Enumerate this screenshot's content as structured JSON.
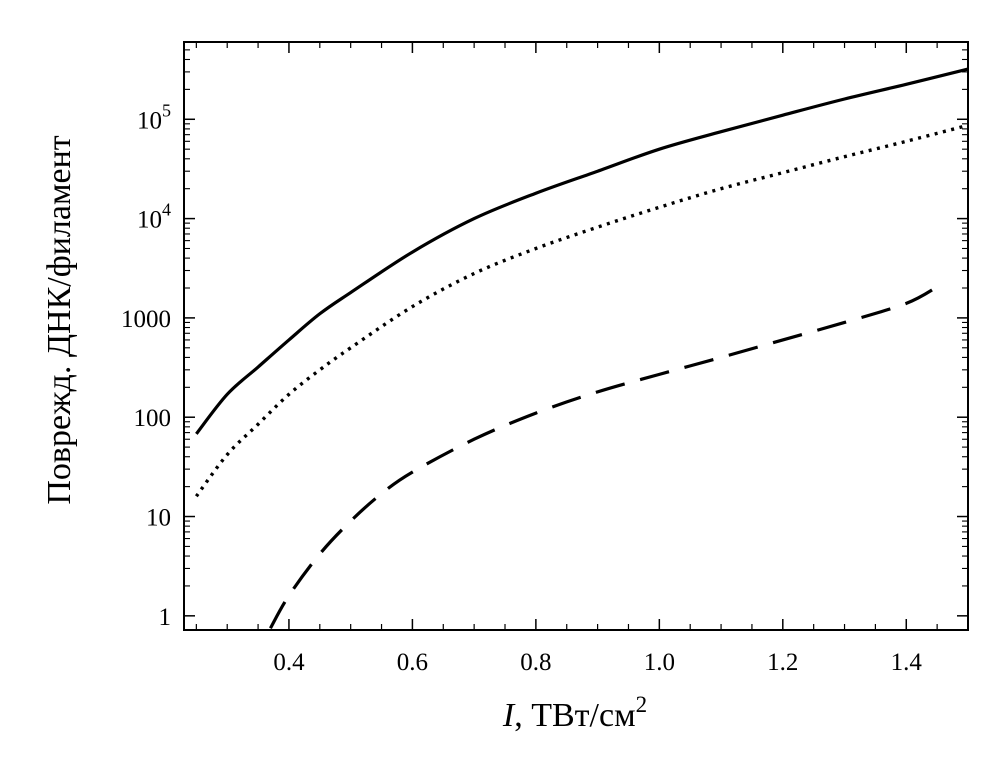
{
  "chart_data": {
    "type": "line",
    "xlabel_italic": "I",
    "xlabel_rest": ", ТВт/см",
    "xlabel_sup": "2",
    "ylabel": "Поврежд. ДНК/филамент",
    "y_scale": "log",
    "xlim": [
      0.23,
      1.5
    ],
    "ylim": [
      0.72,
      600000
    ],
    "x_ticks": [
      {
        "value": 0.4,
        "label": "0.4"
      },
      {
        "value": 0.6,
        "label": "0.6"
      },
      {
        "value": 0.8,
        "label": "0.8"
      },
      {
        "value": 1.0,
        "label": "1.0"
      },
      {
        "value": 1.2,
        "label": "1.2"
      },
      {
        "value": 1.4,
        "label": "1.4"
      }
    ],
    "y_ticks": [
      {
        "value": 1,
        "base": "1",
        "exp": ""
      },
      {
        "value": 10,
        "base": "10",
        "exp": ""
      },
      {
        "value": 100,
        "base": "100",
        "exp": ""
      },
      {
        "value": 1000,
        "base": "1000",
        "exp": ""
      },
      {
        "value": 10000,
        "base": "10",
        "exp": "4"
      },
      {
        "value": 100000,
        "base": "10",
        "exp": "5"
      }
    ],
    "series": [
      {
        "style": "solid",
        "x": [
          0.25,
          0.3,
          0.35,
          0.4,
          0.45,
          0.5,
          0.6,
          0.7,
          0.8,
          0.9,
          1.0,
          1.1,
          1.2,
          1.3,
          1.4,
          1.5
        ],
        "y": [
          68,
          170,
          320,
          600,
          1100,
          1800,
          4600,
          10000,
          18000,
          30000,
          50000,
          75000,
          110000,
          160000,
          225000,
          320000
        ]
      },
      {
        "style": "dotted",
        "x": [
          0.25,
          0.3,
          0.35,
          0.4,
          0.45,
          0.5,
          0.6,
          0.7,
          0.8,
          0.9,
          1.0,
          1.1,
          1.2,
          1.3,
          1.4,
          1.5
        ],
        "y": [
          16,
          42,
          85,
          170,
          300,
          500,
          1300,
          2800,
          5000,
          8200,
          13000,
          20000,
          29000,
          42000,
          60000,
          87000
        ]
      },
      {
        "style": "dashed",
        "x": [
          0.37,
          0.4,
          0.45,
          0.5,
          0.55,
          0.6,
          0.7,
          0.8,
          0.9,
          1.0,
          1.1,
          1.2,
          1.3,
          1.4,
          1.45
        ],
        "y": [
          0.75,
          1.6,
          4.2,
          9,
          17,
          28,
          60,
          110,
          180,
          270,
          400,
          600,
          900,
          1400,
          2050
        ]
      }
    ]
  }
}
